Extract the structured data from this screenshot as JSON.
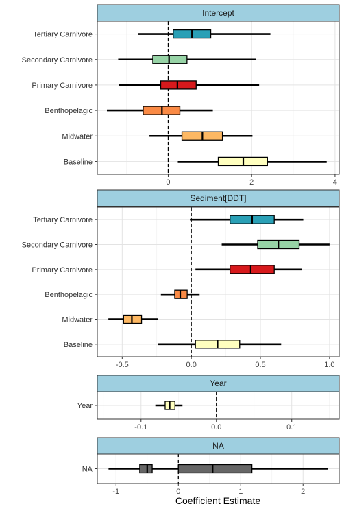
{
  "colors": {
    "strip_fill": "#9ecfe0",
    "tertiary_carnivore": "#2aa0b6",
    "secondary_carnivore": "#97d3a6",
    "primary_carnivore": "#d7191c",
    "benthopelagic": "#fa8a45",
    "midwater": "#fdb863",
    "baseline": "#ffffbf",
    "na": "#666666"
  },
  "chart_data": {
    "type": "box-interval",
    "xlabel": "Coefficient Estimate",
    "grid": true,
    "reference_line": 0,
    "panels": [
      {
        "title": "Intercept",
        "xlim": [
          -1.7,
          4.1
        ],
        "ticks": [
          0,
          2,
          4
        ],
        "tick_labels": [
          "0",
          "2",
          "4"
        ],
        "rows": [
          {
            "label": "Tertiary Carnivore",
            "color_key": "tertiary_carnivore",
            "low": -0.72,
            "q1": 0.12,
            "median": 0.57,
            "q3": 1.02,
            "high": 2.45
          },
          {
            "label": "Secondary Carnivore",
            "color_key": "secondary_carnivore",
            "low": -1.2,
            "q1": -0.37,
            "median": 0.02,
            "q3": 0.45,
            "high": 2.1
          },
          {
            "label": "Primary Carnivore",
            "color_key": "primary_carnivore",
            "low": -1.18,
            "q1": -0.18,
            "median": 0.22,
            "q3": 0.67,
            "high": 2.18
          },
          {
            "label": "Benthopelagic",
            "color_key": "benthopelagic",
            "low": -1.47,
            "q1": -0.6,
            "median": -0.15,
            "q3": 0.28,
            "high": 1.07
          },
          {
            "label": "Midwater",
            "color_key": "midwater",
            "low": -0.45,
            "q1": 0.33,
            "median": 0.82,
            "q3": 1.3,
            "high": 2.02
          },
          {
            "label": "Baseline",
            "color_key": "baseline",
            "low": 0.23,
            "q1": 1.2,
            "median": 1.8,
            "q3": 2.38,
            "high": 3.8
          }
        ]
      },
      {
        "title": "Sediment[DDT]",
        "xlim": [
          -0.68,
          1.07
        ],
        "ticks": [
          -0.5,
          0,
          0.5,
          1
        ],
        "tick_labels": [
          "-0.5",
          "0.0",
          "0.5",
          "1.0"
        ],
        "rows": [
          {
            "label": "Tertiary Carnivore",
            "color_key": "tertiary_carnivore",
            "low": -0.01,
            "q1": 0.28,
            "median": 0.44,
            "q3": 0.6,
            "high": 0.81
          },
          {
            "label": "Secondary Carnivore",
            "color_key": "secondary_carnivore",
            "low": 0.22,
            "q1": 0.48,
            "median": 0.63,
            "q3": 0.78,
            "high": 1.0
          },
          {
            "label": "Primary Carnivore",
            "color_key": "primary_carnivore",
            "low": 0.03,
            "q1": 0.28,
            "median": 0.43,
            "q3": 0.6,
            "high": 0.8
          },
          {
            "label": "Benthopelagic",
            "color_key": "benthopelagic",
            "low": -0.22,
            "q1": -0.12,
            "median": -0.08,
            "q3": -0.03,
            "high": 0.06
          },
          {
            "label": "Midwater",
            "color_key": "midwater",
            "low": -0.6,
            "q1": -0.49,
            "median": -0.43,
            "q3": -0.36,
            "high": -0.24
          },
          {
            "label": "Baseline",
            "color_key": "baseline",
            "low": -0.24,
            "q1": 0.03,
            "median": 0.19,
            "q3": 0.35,
            "high": 0.65
          }
        ]
      },
      {
        "title": "Year",
        "xlim": [
          -0.158,
          0.163
        ],
        "ticks": [
          -0.1,
          0,
          0.1
        ],
        "tick_labels": [
          "-0.1",
          "0.0",
          "0.1"
        ],
        "rows": [
          {
            "label": "Year",
            "color_key": "baseline",
            "low": -0.081,
            "q1": -0.068,
            "median": -0.062,
            "q3": -0.055,
            "high": -0.045
          }
        ]
      },
      {
        "title": "NA",
        "xlim": [
          -1.3,
          2.58
        ],
        "ticks": [
          -1,
          0,
          1,
          2
        ],
        "tick_labels": [
          "-1",
          "0",
          "1",
          "2"
        ],
        "rows": [
          {
            "label": "NA",
            "color_key": "na",
            "low": -1.12,
            "q1": -0.62,
            "median": -0.5,
            "q3": -0.42,
            "high": -0.05,
            "extra": {
              "low": -0.05,
              "q1": 0.0,
              "median": 0.55,
              "q3": 1.18,
              "high": 2.4
            }
          }
        ]
      }
    ]
  }
}
